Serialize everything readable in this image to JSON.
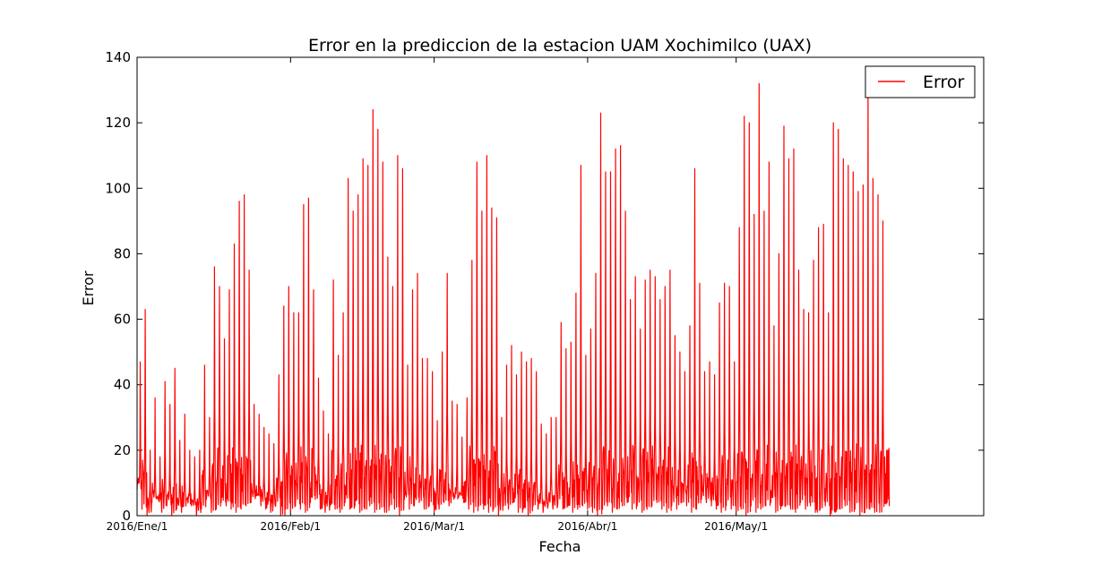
{
  "chart_data": {
    "type": "line",
    "title": "Error en la prediccion de la estacion UAM Xochimilco (UAX)",
    "xlabel": "Fecha",
    "ylabel": "Error",
    "ylim": [
      0,
      140
    ],
    "yticks": [
      0,
      20,
      40,
      60,
      80,
      100,
      120,
      140
    ],
    "xticks": [
      {
        "label": "2016/Ene/1",
        "day": 0
      },
      {
        "label": "2016/Feb/1",
        "day": 31
      },
      {
        "label": "2016/Mar/1",
        "day": 60
      },
      {
        "label": "2016/Abr/1",
        "day": 91
      },
      {
        "label": "2016/May/1",
        "day": 121
      }
    ],
    "xlim_days": [
      0,
      171
    ],
    "grid": false,
    "legend": {
      "position": "top-right",
      "entries": [
        "Error"
      ]
    },
    "series": [
      {
        "name": "Error",
        "color": "#ff0000",
        "x_start": "2016/Ene/1",
        "daily_peaks": [
          47,
          63,
          20,
          36,
          18,
          41,
          34,
          45,
          23,
          31,
          20,
          18,
          20,
          46,
          30,
          76,
          70,
          54,
          69,
          83,
          96,
          98,
          75,
          34,
          31,
          27,
          25,
          22,
          43,
          64,
          70,
          62,
          62,
          95,
          97,
          69,
          42,
          32,
          25,
          72,
          49,
          62,
          103,
          93,
          98,
          109,
          107,
          124,
          118,
          108,
          79,
          70,
          110,
          106,
          46,
          69,
          74,
          48,
          48,
          44,
          29,
          50,
          74,
          35,
          34,
          24,
          36,
          78,
          108,
          93,
          110,
          94,
          91,
          30,
          46,
          52,
          43,
          50,
          47,
          48,
          44,
          28,
          25,
          30,
          30,
          59,
          51,
          53,
          68,
          107,
          49,
          57,
          74,
          123,
          105,
          105,
          112,
          113,
          93,
          66,
          73,
          57,
          72,
          75,
          73,
          66,
          70,
          75,
          55,
          50,
          44,
          58,
          106,
          71,
          44,
          47,
          43,
          65,
          71,
          70,
          47,
          88,
          122,
          120,
          92,
          132,
          93,
          108,
          58,
          80,
          119,
          109,
          112,
          75,
          63,
          62,
          78,
          88,
          89,
          62,
          120,
          118,
          109,
          107,
          105,
          99,
          101,
          135,
          103,
          98,
          90,
          20
        ],
        "daily_lows": [
          8,
          2,
          0,
          4,
          6,
          1,
          3,
          0,
          2,
          1,
          5,
          3,
          0,
          2,
          5,
          1,
          2,
          4,
          3,
          2,
          1,
          2,
          3,
          4,
          6,
          3,
          2,
          1,
          3,
          0,
          2,
          1,
          3,
          2,
          1,
          4,
          5,
          2,
          1,
          3,
          2,
          1,
          4,
          2,
          3,
          1,
          2,
          3,
          1,
          2,
          1,
          3,
          2,
          0,
          5,
          2,
          3,
          4,
          2,
          3,
          1,
          2,
          4,
          3,
          5,
          6,
          4,
          2,
          1,
          3,
          2,
          1,
          2,
          0,
          3,
          2,
          4,
          1,
          2,
          0,
          3,
          2,
          1,
          3,
          2,
          4,
          2,
          3,
          1,
          2,
          3,
          2,
          1,
          0,
          2,
          3,
          1,
          2,
          3,
          4,
          2,
          3,
          1,
          2,
          3,
          4,
          2,
          1,
          3,
          2,
          4,
          3,
          1,
          2,
          5,
          4,
          3,
          2,
          1,
          3,
          2,
          1,
          2,
          0,
          3,
          1,
          2,
          3,
          4,
          1,
          2,
          3,
          2,
          1,
          4,
          2,
          3,
          1,
          2,
          3,
          0,
          1,
          2,
          3,
          1,
          2,
          0,
          1,
          2,
          1,
          1,
          18
        ]
      }
    ]
  }
}
